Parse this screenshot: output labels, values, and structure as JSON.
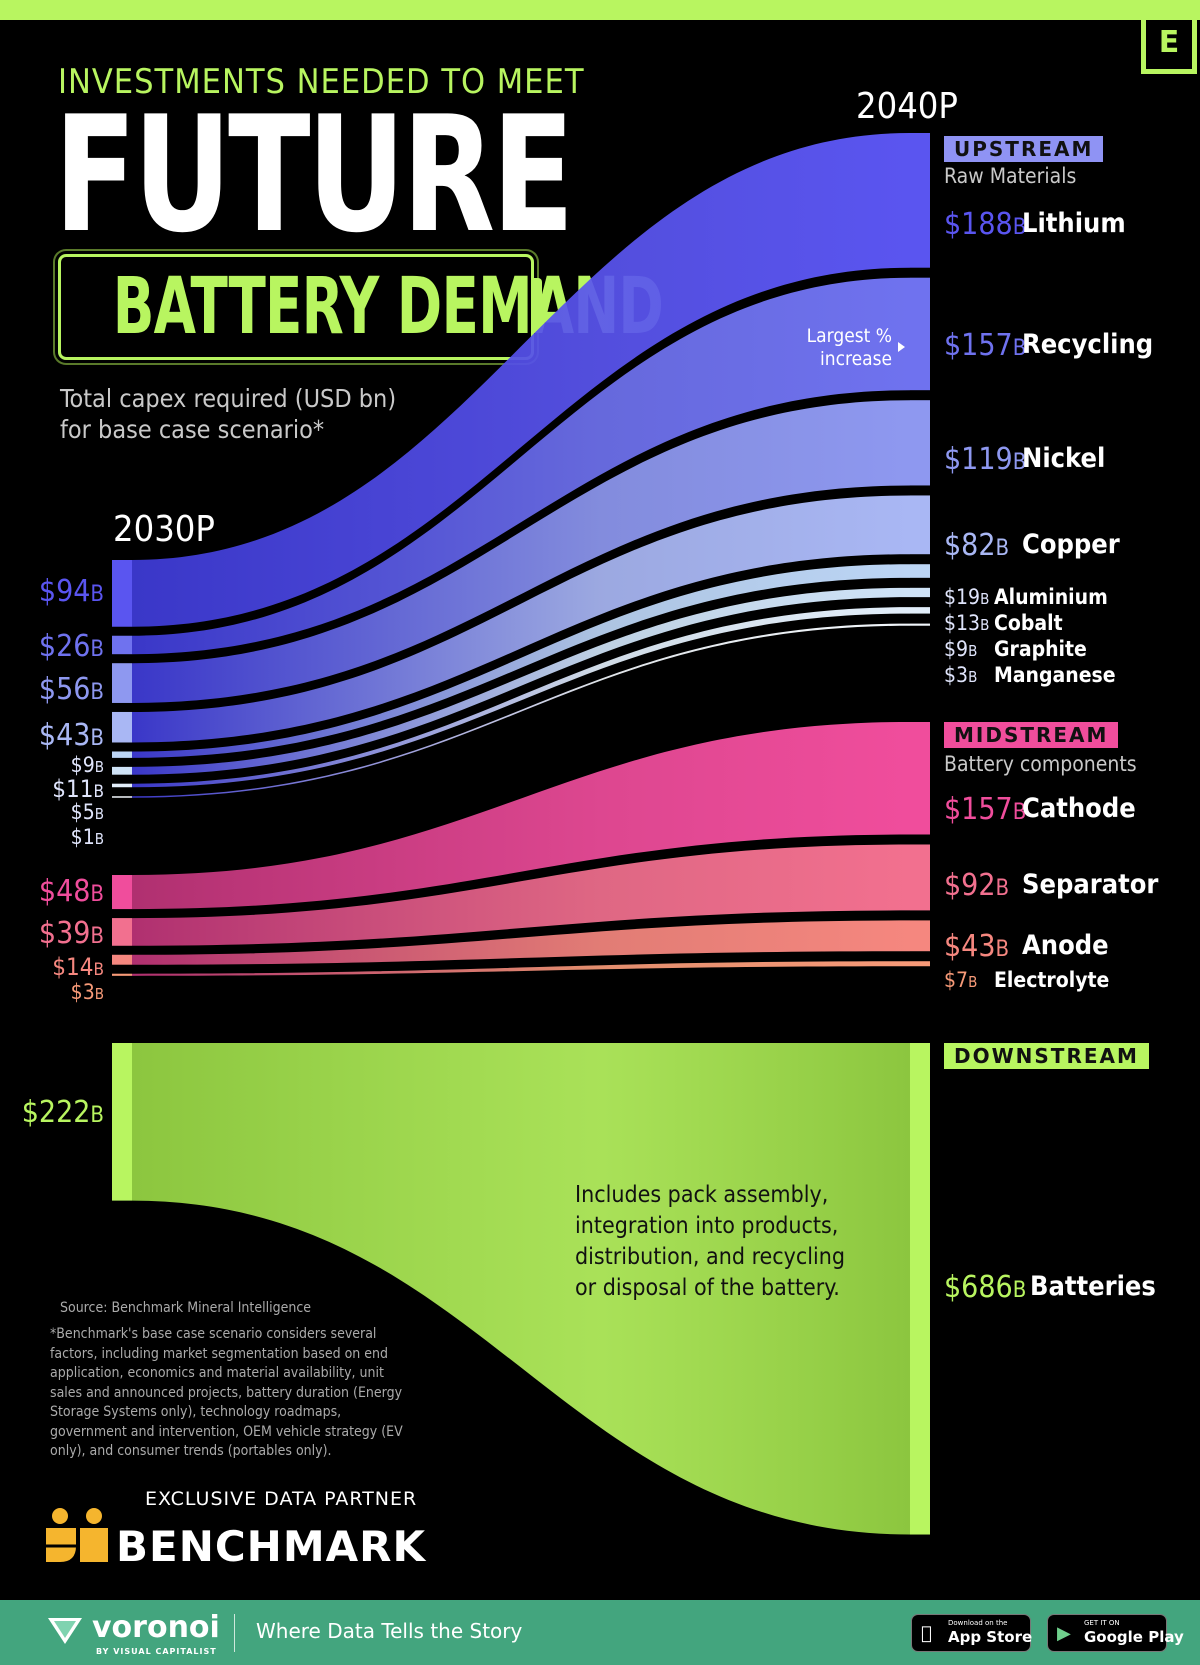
{
  "header": {
    "subtitle": "INVESTMENTS NEEDED TO MEET",
    "title_line1": "FUTURE",
    "title_line2": "BATTERY DEMAND",
    "description_line1": "Total capex required (USD bn)",
    "description_line2": "for base case scenario*",
    "logo_letter": "E"
  },
  "chart_data": {
    "type": "sankey",
    "years": [
      "2030P",
      "2040P"
    ],
    "unit": "B",
    "sections": [
      {
        "name": "UPSTREAM",
        "subtitle": "Raw Materials",
        "color": "#5a55f0",
        "flows": [
          {
            "name": "Lithium",
            "v2030": "94",
            "v2040": "188",
            "color": "#5a55f0"
          },
          {
            "name": "Recycling",
            "v2030": "26",
            "v2040": "157",
            "color": "#6f72ef"
          },
          {
            "name": "Nickel",
            "v2030": "56",
            "v2040": "119",
            "color": "#8e98f0"
          },
          {
            "name": "Copper",
            "v2030": "43",
            "v2040": "82",
            "color": "#a9b7f4"
          },
          {
            "name": "Aluminium",
            "v2030": "9",
            "v2040": "19",
            "color": "#bcd5f5"
          },
          {
            "name": "Cobalt",
            "v2030": "11",
            "v2040": "13",
            "color": "#cfe3f7"
          },
          {
            "name": "Graphite",
            "v2030": "5",
            "v2040": "9",
            "color": "#e2eefa"
          },
          {
            "name": "Manganese",
            "v2030": "1",
            "v2040": "3",
            "color": "#f2f7fc"
          }
        ]
      },
      {
        "name": "MIDSTREAM",
        "subtitle": "Battery components",
        "color": "#f04d9c",
        "flows": [
          {
            "name": "Cathode",
            "v2030": "48",
            "v2040": "157",
            "color": "#f04d9c"
          },
          {
            "name": "Separator",
            "v2030": "39",
            "v2040": "92",
            "color": "#f2708f"
          },
          {
            "name": "Anode",
            "v2030": "14",
            "v2040": "43",
            "color": "#f5877f"
          },
          {
            "name": "Electrolyte",
            "v2030": "3",
            "v2040": "7",
            "color": "#f79a78"
          }
        ]
      },
      {
        "name": "DOWNSTREAM",
        "subtitle": "",
        "color": "#b8f560",
        "flows": [
          {
            "name": "Batteries",
            "v2030": "222",
            "v2040": "686",
            "color": "#b8f560"
          }
        ]
      }
    ],
    "annotations": {
      "largest": "Largest % increase",
      "downstream_note": "Includes pack assembly, integration into products, distribution, and recycling or disposal of the battery."
    }
  },
  "annotations": {
    "largest_line1": "Largest %",
    "largest_line2": "increase"
  },
  "source": {
    "source_line": "Source: Benchmark Mineral Intelligence",
    "footnote": "*Benchmark's base case scenario considers several factors, including market segmentation based on end application, economics and material availability, unit sales and announced projects, battery duration (Energy Storage Systems only), technology roadmaps, government and intervention, OEM vehicle strategy (EV only), and consumer trends (portables only)."
  },
  "partner": {
    "label": "EXCLUSIVE DATA PARTNER",
    "name": "BENCHMARK"
  },
  "footer": {
    "brand": "voronoi",
    "by": "BY VISUAL CAPITALIST",
    "tagline": "Where Data Tells the Story",
    "appstore_top": "Download on the",
    "appstore_main": "App Store",
    "googleplay_top": "GET IT ON",
    "googleplay_main": "Google Play"
  },
  "colors": {
    "accent": "#b8f560",
    "upstream": "#5a55f0",
    "midstream": "#f04d9c",
    "footer": "#43a57e"
  }
}
